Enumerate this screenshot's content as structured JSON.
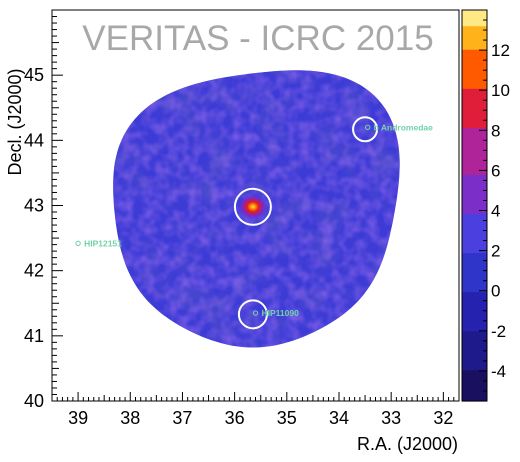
{
  "chart_data": {
    "type": "heatmap",
    "title": "VERITAS - ICRC 2015",
    "xlabel": "R.A. (J2000)",
    "ylabel": "Decl. (J2000)",
    "x_range": [
      39.5,
      31.7
    ],
    "y_range": [
      40.0,
      46.0
    ],
    "x_ticks": [
      {
        "value": 39,
        "label": "39"
      },
      {
        "value": 38,
        "label": "38"
      },
      {
        "value": 37,
        "label": "37"
      },
      {
        "value": 36,
        "label": "36"
      },
      {
        "value": 35,
        "label": "35"
      },
      {
        "value": 34,
        "label": "34"
      },
      {
        "value": 33,
        "label": "33"
      },
      {
        "value": 32,
        "label": "32"
      }
    ],
    "y_ticks": [
      {
        "value": 41,
        "label": "41"
      },
      {
        "value": 42,
        "label": "42"
      },
      {
        "value": 43,
        "label": "43"
      },
      {
        "value": 44,
        "label": "44"
      },
      {
        "value": 45,
        "label": "45"
      }
    ],
    "y_axis_bottom_label": "40",
    "colorbar": {
      "range": [
        -5.5,
        14
      ],
      "ticks": [
        {
          "value": 12,
          "label": "12"
        },
        {
          "value": 10,
          "label": "10"
        },
        {
          "value": 8,
          "label": "8"
        },
        {
          "value": 6,
          "label": "6"
        },
        {
          "value": 4,
          "label": "4"
        },
        {
          "value": 2,
          "label": "2"
        },
        {
          "value": 0,
          "label": "0"
        },
        {
          "value": -2,
          "label": "-2"
        },
        {
          "value": -4,
          "label": "-4"
        }
      ]
    },
    "field_center": {
      "ra": 35.65,
      "dec": 43.0
    },
    "hotspot": {
      "ra": 35.65,
      "dec": 42.98,
      "peak": 11
    },
    "circles": [
      {
        "ra": 35.65,
        "dec": 42.98
      },
      {
        "ra": 33.5,
        "dec": 44.17
      },
      {
        "ra": 35.65,
        "dec": 41.33
      }
    ],
    "stars": [
      {
        "name": "b Andromedae",
        "ra": 33.45,
        "dec": 44.2
      },
      {
        "name": "HIP12151",
        "ra": 39.0,
        "dec": 42.42
      },
      {
        "name": "HIP11090",
        "ra": 35.6,
        "dec": 41.35
      }
    ]
  }
}
